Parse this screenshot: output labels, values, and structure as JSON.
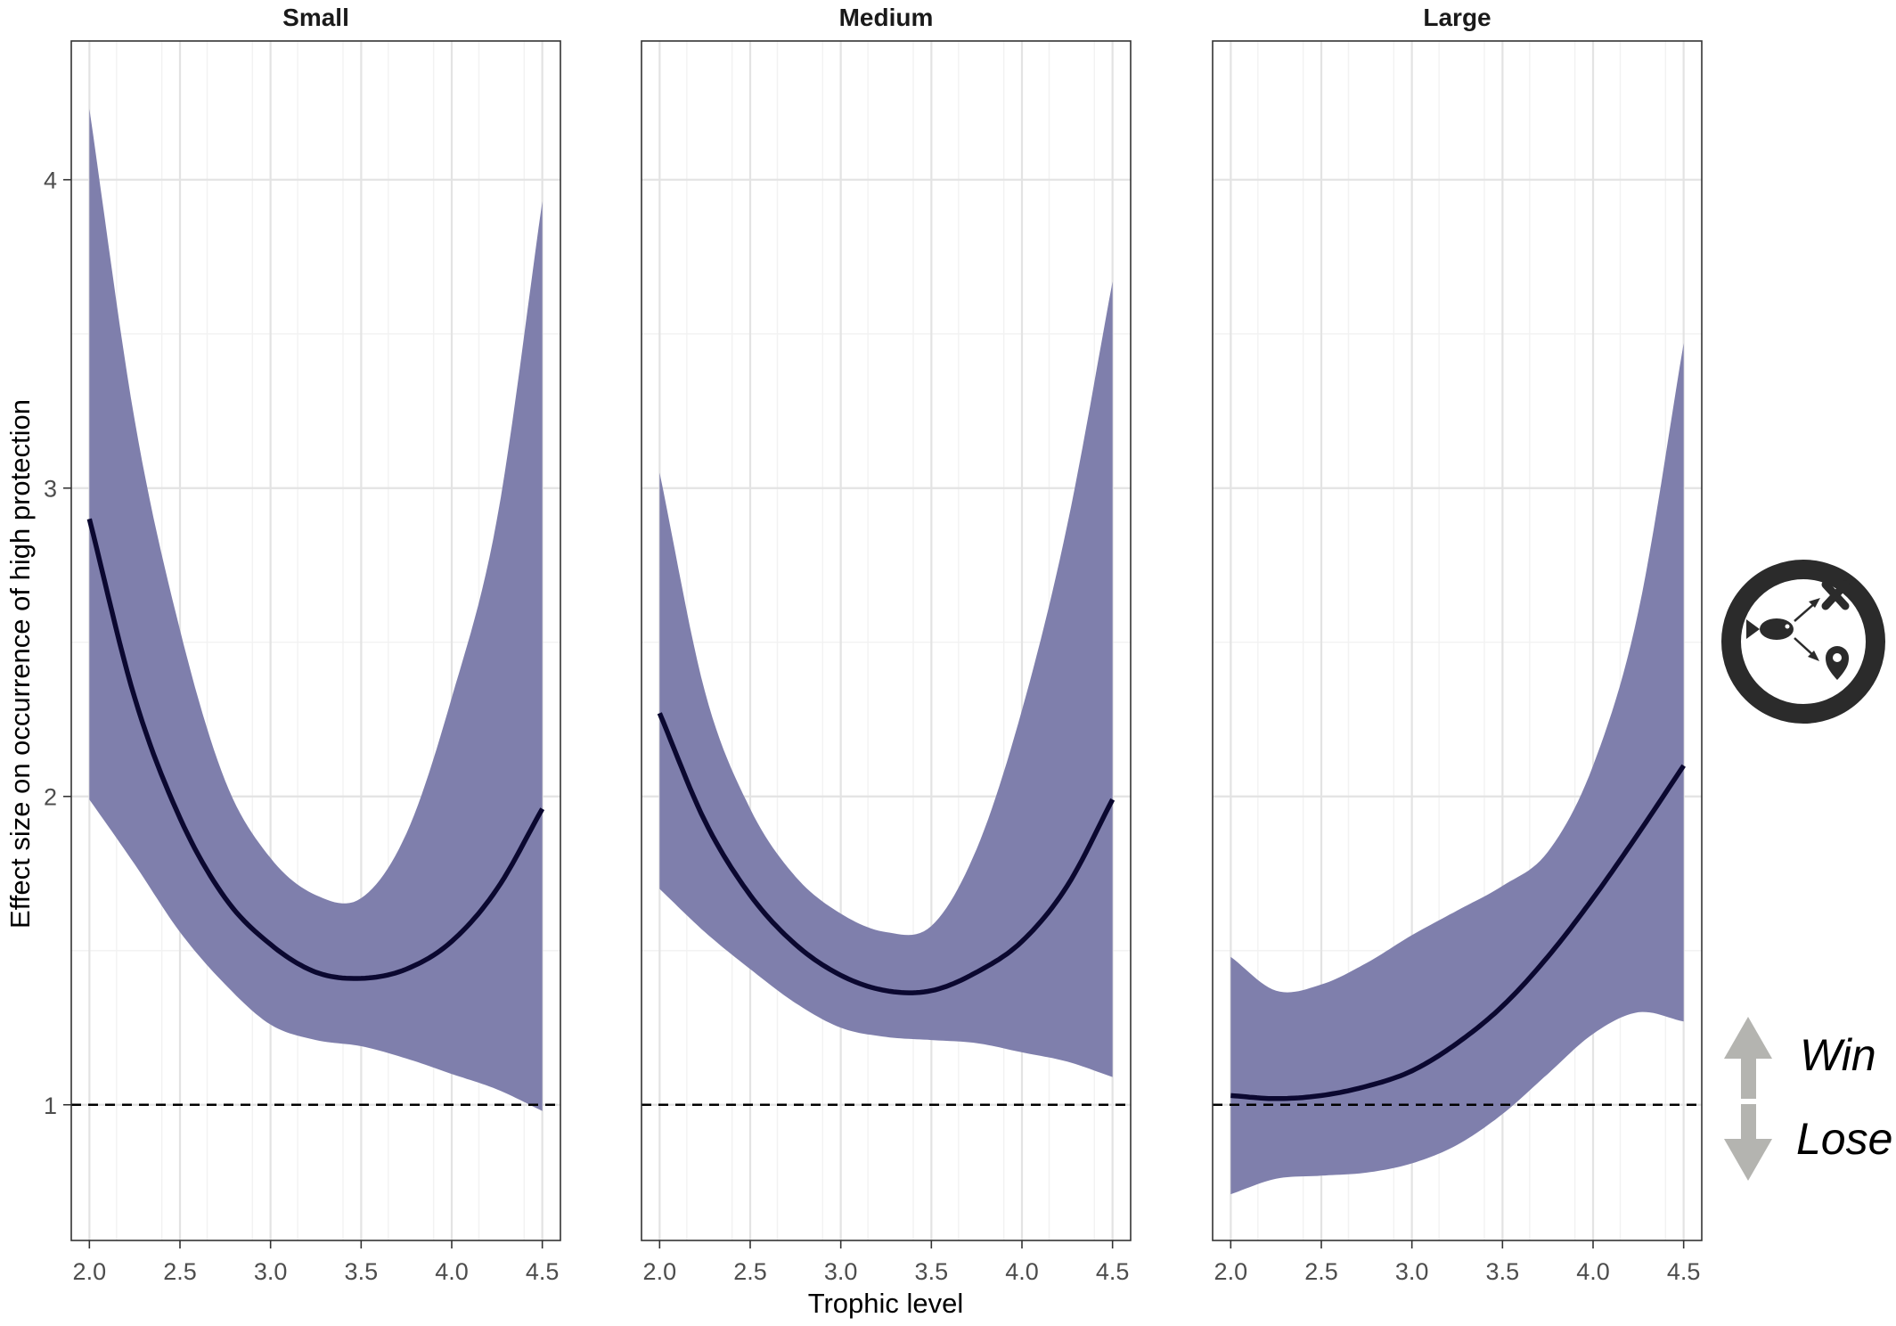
{
  "chart_data": {
    "type": "line",
    "xlabel": "Trophic level",
    "ylabel": "Effect size on occurrence of high protection",
    "xlim": [
      1.9,
      4.6
    ],
    "ylim": [
      0.56,
      4.45
    ],
    "x_ticks": [
      "2.0",
      "2.5",
      "3.0",
      "3.5",
      "4.0",
      "4.5"
    ],
    "y_ticks": [
      "1",
      "2",
      "3",
      "4"
    ],
    "reference_line": 1,
    "grid": true,
    "colors": {
      "ribbon": "#7f7fac",
      "line": "#0b0830",
      "reference": "#000000",
      "arrow": "#b4b4b0"
    },
    "legend": {
      "win_label": "Win",
      "lose_label": "Lose",
      "icon": "fish-relocation-icon"
    },
    "panels": [
      {
        "name": "Small",
        "x": [
          2.0,
          2.25,
          2.5,
          2.75,
          3.0,
          3.25,
          3.5,
          3.75,
          4.0,
          4.25,
          4.5
        ],
        "fit": [
          2.9,
          2.32,
          1.93,
          1.67,
          1.52,
          1.43,
          1.41,
          1.44,
          1.53,
          1.7,
          1.96
        ],
        "upper": [
          4.23,
          3.22,
          2.54,
          2.05,
          1.8,
          1.68,
          1.67,
          1.88,
          2.32,
          2.9,
          3.93
        ],
        "lower": [
          1.99,
          1.78,
          1.56,
          1.39,
          1.26,
          1.21,
          1.19,
          1.15,
          1.1,
          1.05,
          0.98
        ]
      },
      {
        "name": "Medium",
        "x": [
          2.0,
          2.25,
          2.5,
          2.75,
          3.0,
          3.25,
          3.5,
          3.75,
          4.0,
          4.25,
          4.5
        ],
        "fit": [
          2.27,
          1.92,
          1.68,
          1.52,
          1.42,
          1.37,
          1.37,
          1.43,
          1.53,
          1.71,
          1.99
        ],
        "upper": [
          3.05,
          2.34,
          1.96,
          1.74,
          1.62,
          1.56,
          1.58,
          1.83,
          2.28,
          2.88,
          3.67
        ],
        "lower": [
          1.7,
          1.56,
          1.44,
          1.33,
          1.25,
          1.22,
          1.21,
          1.2,
          1.17,
          1.14,
          1.09
        ]
      },
      {
        "name": "Large",
        "x": [
          2.0,
          2.25,
          2.5,
          2.75,
          3.0,
          3.25,
          3.5,
          3.75,
          4.0,
          4.25,
          4.5
        ],
        "fit": [
          1.03,
          1.02,
          1.03,
          1.06,
          1.11,
          1.2,
          1.32,
          1.48,
          1.67,
          1.88,
          2.1
        ],
        "upper": [
          1.48,
          1.37,
          1.39,
          1.46,
          1.55,
          1.63,
          1.71,
          1.82,
          2.1,
          2.6,
          3.47
        ],
        "lower": [
          0.71,
          0.76,
          0.77,
          0.78,
          0.81,
          0.87,
          0.97,
          1.1,
          1.23,
          1.3,
          1.27
        ]
      }
    ]
  }
}
